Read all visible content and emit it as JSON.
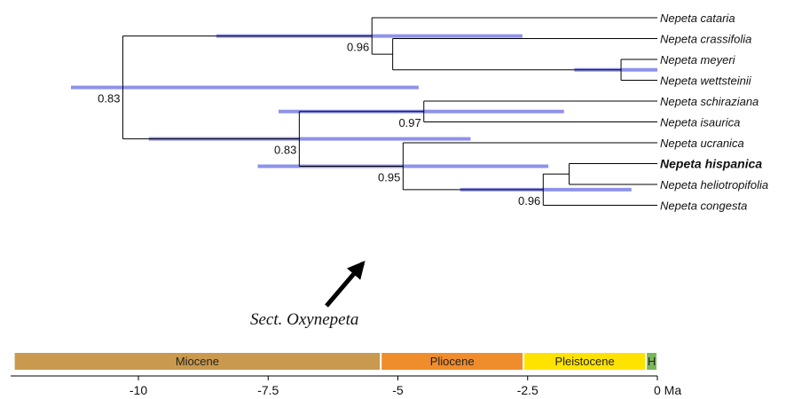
{
  "tree": {
    "taxa": [
      {
        "id": "cataria",
        "label": "Nepeta cataria",
        "bold": false
      },
      {
        "id": "crassifolia",
        "label": "Nepeta crassifolia",
        "bold": false
      },
      {
        "id": "meyeri",
        "label": "Nepeta meyeri",
        "bold": false
      },
      {
        "id": "wettsteinii",
        "label": "Nepeta wettsteinii",
        "bold": false
      },
      {
        "id": "schiraziana",
        "label": "Nepeta schiraziana",
        "bold": false
      },
      {
        "id": "isaurica",
        "label": "Nepeta isaurica",
        "bold": false
      },
      {
        "id": "ucranica",
        "label": "Nepeta ucranica",
        "bold": false
      },
      {
        "id": "hispanica",
        "label": "Nepeta hispanica",
        "bold": true
      },
      {
        "id": "heliotropifolia",
        "label": "Nepeta heliotropifolia",
        "bold": false
      },
      {
        "id": "congesta",
        "label": "Nepeta congesta",
        "bold": false
      }
    ],
    "nodes": [
      {
        "id": "n_root",
        "age": -10.3,
        "children": [
          "n_A",
          "n_B"
        ],
        "ci": [
          -11.3,
          -4.6
        ],
        "support": "0.83"
      },
      {
        "id": "n_A",
        "age": -5.5,
        "children": [
          "cataria",
          "n_A2"
        ],
        "ci": [
          -8.5,
          -2.6
        ],
        "support": "0.96"
      },
      {
        "id": "n_A2",
        "age": -5.1,
        "children": [
          "crassifolia",
          "n_mw"
        ],
        "ci": null,
        "support": ""
      },
      {
        "id": "n_mw",
        "age": -0.7,
        "children": [
          "meyeri",
          "wettsteinii"
        ],
        "ci": [
          -1.6,
          0.0
        ],
        "support": ""
      },
      {
        "id": "n_B",
        "age": -6.9,
        "children": [
          "n_si",
          "n_C"
        ],
        "ci": [
          -9.8,
          -3.6
        ],
        "support": "0.83"
      },
      {
        "id": "n_si",
        "age": -4.5,
        "children": [
          "schiraziana",
          "isaurica"
        ],
        "ci": [
          -7.3,
          -1.8
        ],
        "support": "0.97"
      },
      {
        "id": "n_C",
        "age": -4.9,
        "children": [
          "ucranica",
          "n_D"
        ],
        "ci": [
          -7.7,
          -2.1
        ],
        "support": "0.95"
      },
      {
        "id": "n_D",
        "age": -2.2,
        "children": [
          "n_hh",
          "congesta"
        ],
        "ci": [
          -3.8,
          -0.5
        ],
        "support": "0.96"
      },
      {
        "id": "n_hh",
        "age": -1.7,
        "children": [
          "hispanica",
          "heliotropifolia"
        ],
        "ci": null,
        "support": ""
      }
    ],
    "annotation": {
      "label": "Sect. Oxynepeta",
      "target_node": "n_C"
    }
  },
  "timescale": {
    "axis_ticks": [
      -10,
      -7.5,
      -5,
      -2.5,
      0
    ],
    "tick_labels": [
      "-10",
      "-7.5",
      "-5",
      "-2.5",
      "0 Ma"
    ],
    "epochs": [
      {
        "name": "Miocene",
        "label": "Miocene",
        "start": -12.4,
        "end": -5.33,
        "color": "#c99a4e"
      },
      {
        "name": "Pliocene",
        "label": "Pliocene",
        "start": -5.33,
        "end": -2.58,
        "color": "#ef8c2b"
      },
      {
        "name": "Pleistocene",
        "label": "Pleistocene",
        "start": -2.58,
        "end": -0.22,
        "color": "#ffe300"
      },
      {
        "name": "Holocene",
        "label": "H",
        "start": -0.22,
        "end": 0,
        "color": "#79b75a"
      }
    ]
  }
}
